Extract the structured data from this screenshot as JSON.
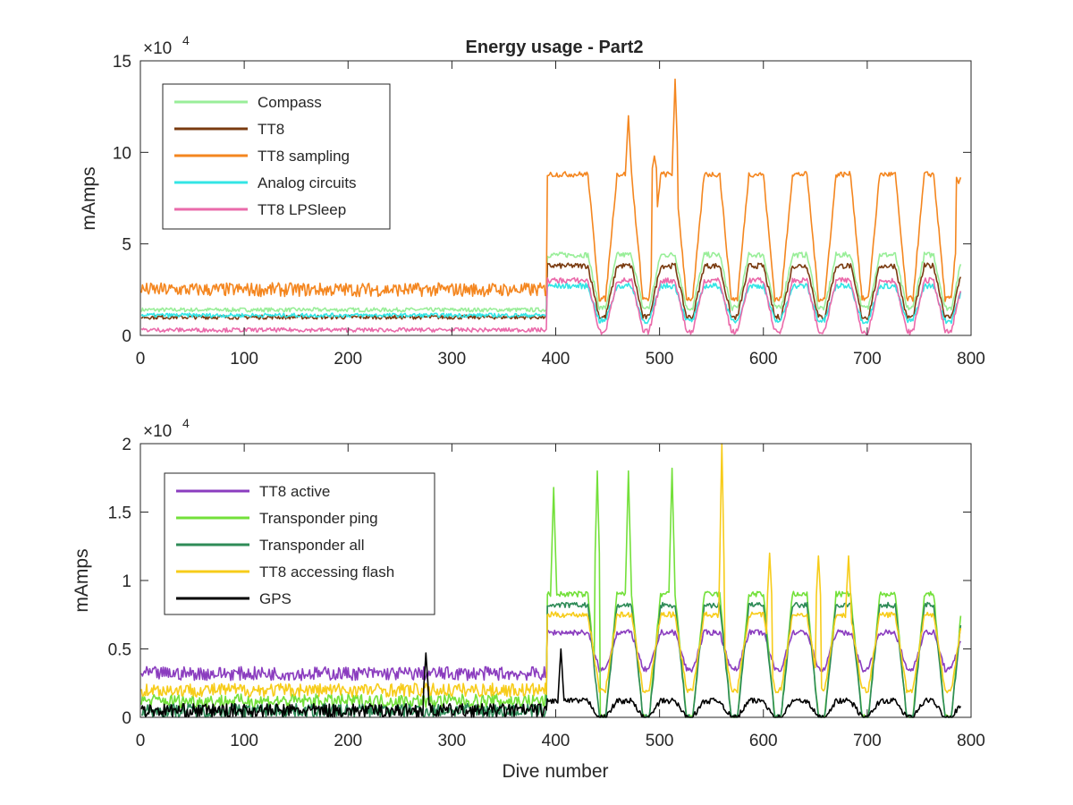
{
  "figure": {
    "title": "Energy usage - Part2",
    "xlabel": "Dive number"
  },
  "chart_data": [
    {
      "type": "line",
      "title": "Energy usage - Part2",
      "xlabel": "",
      "ylabel": "mAmps",
      "y_multiplier": "×10^4",
      "y_multiplier_base": "×10",
      "y_multiplier_exp": "4",
      "xlim": [
        0,
        800
      ],
      "ylim": [
        0,
        15
      ],
      "xticks": [
        0,
        100,
        200,
        300,
        400,
        500,
        600,
        700,
        800
      ],
      "yticks": [
        0,
        5,
        10,
        15
      ],
      "legend_position": "top-left",
      "grid": false,
      "x_end": 790,
      "switch_at": 392,
      "pulse_peaks": [
        420,
        462,
        505,
        548,
        590,
        632,
        675,
        717,
        760,
        790
      ],
      "pulse_troughs": [
        445,
        487,
        529,
        572,
        614,
        656,
        698,
        741,
        778
      ],
      "series": [
        {
          "name": "Compass",
          "color": "#99ee99",
          "before": 1.4,
          "high": 4.4,
          "low": 1.5
        },
        {
          "name": "TT8",
          "color": "#7a3b10",
          "before": 1.0,
          "high": 3.8,
          "low": 1.0
        },
        {
          "name": "TT8 sampling",
          "color": "#f4861f",
          "before": 2.5,
          "high": 8.8,
          "low": 2.0,
          "peaks": [
            {
              "x": 470,
              "y": 12.0
            },
            {
              "x": 515,
              "y": 14.0
            },
            {
              "x": 495,
              "y": 9.8
            },
            {
              "x": 788,
              "y": 8.3
            }
          ]
        },
        {
          "name": "Analog circuits",
          "color": "#33e5e5",
          "before": 1.1,
          "high": 2.7,
          "low": 0.8
        },
        {
          "name": "TT8 LPSleep",
          "color": "#ea6aaa",
          "before": 0.3,
          "high": 3.0,
          "low": 0.2
        }
      ]
    },
    {
      "type": "line",
      "title": "",
      "xlabel": "Dive number",
      "ylabel": "mAmps",
      "y_multiplier": "×10^4",
      "y_multiplier_base": "×10",
      "y_multiplier_exp": "4",
      "xlim": [
        0,
        800
      ],
      "ylim": [
        0,
        2
      ],
      "xticks": [
        0,
        100,
        200,
        300,
        400,
        500,
        600,
        700,
        800
      ],
      "yticks": [
        0,
        0.5,
        1,
        1.5,
        2
      ],
      "legend_position": "top-left",
      "grid": false,
      "x_end": 790,
      "switch_at": 392,
      "pulse_peaks": [
        420,
        462,
        505,
        548,
        590,
        632,
        675,
        717,
        760,
        790
      ],
      "pulse_troughs": [
        445,
        487,
        529,
        572,
        614,
        656,
        698,
        741,
        778
      ],
      "series": [
        {
          "name": "TT8 active",
          "color": "#8b3dbf",
          "before": 0.32,
          "high": 0.62,
          "low": 0.35
        },
        {
          "name": "Transponder ping",
          "color": "#73e03a",
          "before": 0.12,
          "high": 0.9,
          "low": 0.0,
          "peaks": [
            {
              "x": 398,
              "y": 1.68
            },
            {
              "x": 440,
              "y": 1.8
            },
            {
              "x": 470,
              "y": 1.8
            },
            {
              "x": 512,
              "y": 1.82
            }
          ]
        },
        {
          "name": "Transponder all",
          "color": "#2e8b57",
          "before": 0.05,
          "high": 0.82,
          "low": 0.0
        },
        {
          "name": "TT8 accessing flash",
          "color": "#f7cc1a",
          "before": 0.2,
          "high": 0.75,
          "low": 0.2,
          "peaks": [
            {
              "x": 560,
              "y": 2.0
            },
            {
              "x": 606,
              "y": 1.2
            },
            {
              "x": 653,
              "y": 1.18
            },
            {
              "x": 682,
              "y": 1.18
            }
          ]
        },
        {
          "name": "GPS",
          "color": "#000000",
          "before": 0.05,
          "high": 0.12,
          "low": 0.0,
          "peaks": [
            {
              "x": 275,
              "y": 0.47
            },
            {
              "x": 405,
              "y": 0.5
            }
          ]
        }
      ]
    }
  ]
}
